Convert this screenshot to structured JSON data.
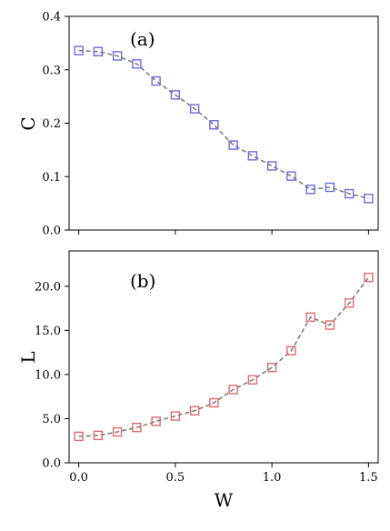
{
  "chart_data": [
    {
      "type": "line",
      "label": "(a)",
      "xlabel": "",
      "ylabel": "C",
      "xlim": [
        -0.05,
        1.55
      ],
      "ylim": [
        0.0,
        0.4
      ],
      "xticks": [
        0.0,
        0.5,
        1.0,
        1.5
      ],
      "xtick_labels": [
        "",
        "",
        "",
        ""
      ],
      "yticks": [
        0.0,
        0.1,
        0.2,
        0.3,
        0.4
      ],
      "ytick_labels": [
        "0.0",
        "0.1",
        "0.2",
        "0.3",
        "0.4"
      ],
      "grid": false,
      "marker": "square",
      "marker_color": "#6b6bdf",
      "line_color": "#777777",
      "x": [
        0.0,
        0.1,
        0.2,
        0.3,
        0.4,
        0.5,
        0.6,
        0.7,
        0.8,
        0.9,
        1.0,
        1.1,
        1.2,
        1.3,
        1.4,
        1.5
      ],
      "y": [
        0.336,
        0.334,
        0.326,
        0.311,
        0.279,
        0.253,
        0.227,
        0.197,
        0.159,
        0.139,
        0.12,
        0.101,
        0.076,
        0.08,
        0.068,
        0.059
      ]
    },
    {
      "type": "line",
      "label": "(b)",
      "xlabel": "W",
      "ylabel": "L",
      "xlim": [
        -0.05,
        1.55
      ],
      "ylim": [
        0.0,
        24.0
      ],
      "xticks": [
        0.0,
        0.5,
        1.0,
        1.5
      ],
      "xtick_labels": [
        "0.0",
        "0.5",
        "1.0",
        "1.5"
      ],
      "yticks": [
        0.0,
        5.0,
        10.0,
        15.0,
        20.0
      ],
      "ytick_labels": [
        "0.0",
        "5.0",
        "10.0",
        "15.0",
        "20.0"
      ],
      "grid": false,
      "marker": "square",
      "marker_color": "#e06b6b",
      "line_color": "#777777",
      "x": [
        0.0,
        0.1,
        0.2,
        0.3,
        0.4,
        0.5,
        0.6,
        0.7,
        0.8,
        0.9,
        1.0,
        1.1,
        1.2,
        1.3,
        1.4,
        1.5
      ],
      "y": [
        3.0,
        3.1,
        3.5,
        4.0,
        4.7,
        5.3,
        5.9,
        6.8,
        8.3,
        9.4,
        10.8,
        12.7,
        16.5,
        15.6,
        18.1,
        21.0
      ]
    }
  ]
}
